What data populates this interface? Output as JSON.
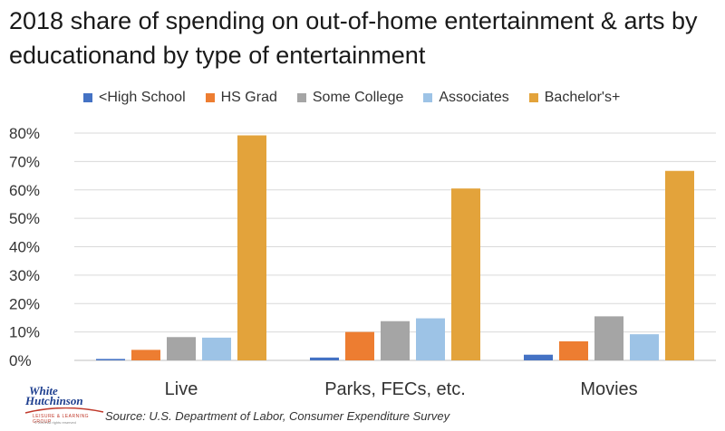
{
  "chart_data": {
    "type": "bar",
    "title": "2018 share of spending on out-of-home entertainment & arts by educationand by type of entertainment",
    "categories": [
      "Live",
      "Parks, FECs, etc.",
      "Movies"
    ],
    "series": [
      {
        "name": "<High School",
        "color": "#4472c4",
        "values": [
          0.5,
          1.0,
          2.0
        ]
      },
      {
        "name": "HS Grad",
        "color": "#ed7d31",
        "values": [
          3.7,
          10.0,
          6.7
        ]
      },
      {
        "name": "Some College",
        "color": "#a5a5a5",
        "values": [
          8.2,
          13.8,
          15.5
        ]
      },
      {
        "name": "Associates",
        "color": "#9dc3e6",
        "values": [
          8.0,
          14.8,
          9.2
        ]
      },
      {
        "name": "Bachelor's+",
        "color": "#e3a33b",
        "values": [
          79.2,
          60.5,
          66.7
        ]
      }
    ],
    "y_ticks": [
      "0%",
      "10%",
      "20%",
      "30%",
      "40%",
      "50%",
      "60%",
      "70%",
      "80%"
    ],
    "ylim": [
      0,
      80
    ],
    "grid": true,
    "legend_position": "top"
  },
  "logo": {
    "line1": "White",
    "line2": "Hutchinson",
    "tagline": "LEISURE & LEARNING GROUP",
    "copyright": "© 2019 All rights reserved"
  },
  "source": "Source: U.S. Department of Labor, Consumer Expenditure Survey"
}
